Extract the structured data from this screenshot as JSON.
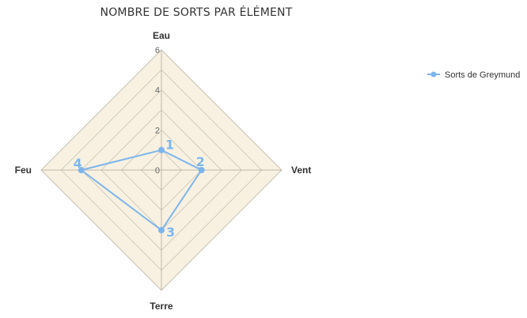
{
  "chart_data": {
    "type": "radar",
    "title": "NOMBRE DE SORTS PAR ÉLÉMENT",
    "categories": [
      "Eau",
      "Vent",
      "Terre",
      "Feu"
    ],
    "series": [
      {
        "name": "Sorts de Greymund",
        "values": [
          1,
          2,
          3,
          4
        ],
        "color": "#7cb5ec"
      }
    ],
    "r_range": [
      0,
      6
    ],
    "r_ticks": [
      0,
      2,
      4,
      6
    ],
    "grid": true,
    "legend_position": "top-right",
    "show_data_labels": true
  },
  "colors": {
    "plot_band": "#f8f1e1",
    "grid_line": "#c8c2b4",
    "axis_line": "#bfb7a6",
    "series": "#7cb5ec"
  }
}
